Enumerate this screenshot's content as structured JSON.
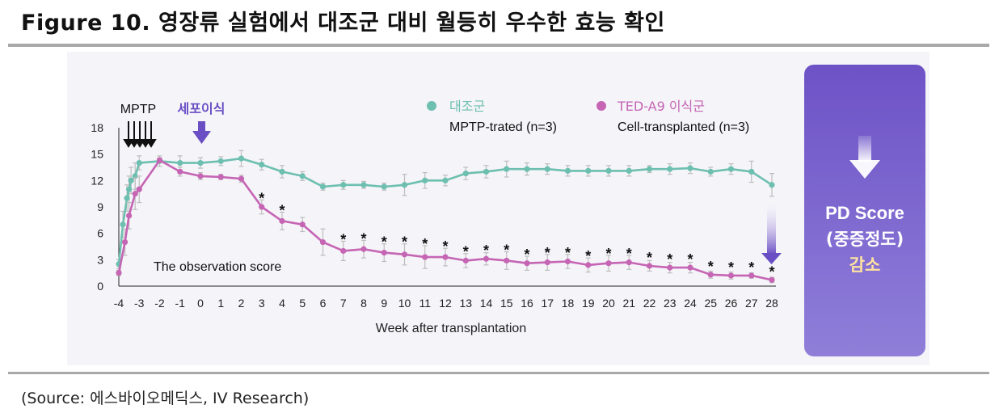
{
  "header": {
    "title": "Figure 10. 영장류 실험에서 대조군 대비 월등히 우수한 효능 확인"
  },
  "footer": {
    "source": "(Source: 에스바이오메딕스, IV Research)"
  },
  "annotations": {
    "mptp": "MPTP",
    "transplant": "세포이식",
    "observation": "The observation score",
    "pd_line1": "PD Score",
    "pd_line2": "(중증정도)",
    "pd_line3": "감소",
    "star": "*"
  },
  "legend": [
    {
      "name": "대조군",
      "desc": "MPTP-trated (n=3)",
      "color": "#6dbfb0"
    },
    {
      "name": "TED-A9 이식군",
      "desc": "Cell-transplanted (n=3)",
      "color": "#c565b4"
    }
  ],
  "colors": {
    "teal": "#6dbfb0",
    "magenta": "#c565b4",
    "purple": "#6a4fc4",
    "errorbar": "#bdbdbd"
  },
  "chart_data": {
    "type": "line",
    "xlabel": "Week after transplantation",
    "ylabel": "",
    "xlim": [
      -4,
      28
    ],
    "ylim": [
      0,
      18
    ],
    "xticks": [
      -4,
      -3,
      -2,
      -1,
      0,
      1,
      2,
      3,
      4,
      5,
      6,
      7,
      8,
      9,
      10,
      11,
      12,
      13,
      14,
      15,
      16,
      17,
      18,
      19,
      20,
      21,
      22,
      23,
      24,
      25,
      26,
      27,
      28
    ],
    "yticks": [
      0,
      3,
      6,
      9,
      12,
      15,
      18
    ],
    "legend_position": "top-right",
    "series": [
      {
        "name": "대조군",
        "label": "MPTP-trated (n=3)",
        "color": "#6dbfb0",
        "x": [
          -4,
          -3.8,
          -3.6,
          -3.5,
          -3.4,
          -3.2,
          -3,
          -2,
          -1,
          0,
          1,
          2,
          3,
          4,
          5,
          6,
          7,
          8,
          9,
          10,
          11,
          12,
          13,
          14,
          15,
          16,
          17,
          18,
          19,
          20,
          21,
          22,
          23,
          24,
          25,
          26,
          27,
          28
        ],
        "y": [
          2.5,
          7.0,
          10.0,
          11.0,
          12.0,
          12.5,
          14.0,
          14.2,
          14.0,
          14.0,
          14.2,
          14.5,
          13.8,
          13.0,
          12.5,
          11.3,
          11.5,
          11.5,
          11.3,
          11.5,
          12.0,
          12.0,
          12.8,
          13.0,
          13.3,
          13.3,
          13.3,
          13.1,
          13.1,
          13.1,
          13.1,
          13.3,
          13.3,
          13.4,
          13.0,
          13.3,
          13.0,
          11.5
        ],
        "error": [
          0.5,
          1.5,
          1.5,
          1.5,
          1.5,
          1.5,
          0.8,
          0.6,
          0.8,
          0.6,
          0.5,
          0.9,
          0.6,
          0.7,
          0.5,
          0.4,
          0.5,
          0.4,
          0.4,
          1.2,
          0.9,
          0.6,
          0.7,
          0.7,
          0.9,
          0.7,
          0.6,
          0.6,
          0.6,
          0.6,
          0.6,
          0.4,
          0.6,
          0.6,
          0.5,
          0.6,
          1.2,
          1.3
        ]
      },
      {
        "name": "TED-A9 이식군",
        "label": "Cell-transplanted (n=3)",
        "color": "#c565b4",
        "x": [
          -4,
          -3.7,
          -3.5,
          -3.2,
          -3,
          -2,
          -1,
          0,
          1,
          2,
          3,
          4,
          5,
          6,
          7,
          8,
          9,
          10,
          11,
          12,
          13,
          14,
          15,
          16,
          17,
          18,
          19,
          20,
          21,
          22,
          23,
          24,
          25,
          26,
          27,
          28
        ],
        "y": [
          1.5,
          5.0,
          8.0,
          10.5,
          11.0,
          14.3,
          13.0,
          12.5,
          12.4,
          12.2,
          9.0,
          7.4,
          7.0,
          5.0,
          4.0,
          4.2,
          3.8,
          3.6,
          3.3,
          3.3,
          2.9,
          3.1,
          2.9,
          2.6,
          2.7,
          2.8,
          2.4,
          2.6,
          2.7,
          2.3,
          2.1,
          2.1,
          1.3,
          1.2,
          1.2,
          0.7
        ],
        "error": [
          0.3,
          1.5,
          1.5,
          1.8,
          1.5,
          0.3,
          0.5,
          0.4,
          0.3,
          0.4,
          0.8,
          1.0,
          0.8,
          1.5,
          1.1,
          1.0,
          1.0,
          1.2,
          1.3,
          1.0,
          0.8,
          0.7,
          1.0,
          0.8,
          0.9,
          0.8,
          0.8,
          0.9,
          0.8,
          0.6,
          0.6,
          0.6,
          0.4,
          0.4,
          0.3,
          0.3
        ],
        "significant_weeks": [
          3,
          4,
          7,
          8,
          9,
          10,
          11,
          12,
          13,
          14,
          15,
          16,
          17,
          18,
          19,
          20,
          21,
          22,
          23,
          24,
          25,
          26,
          27,
          28
        ]
      }
    ]
  }
}
